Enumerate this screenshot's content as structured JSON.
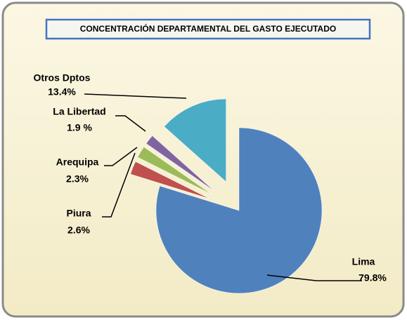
{
  "chart_data": {
    "type": "pie",
    "title": "CONCENTRACIÓN DEPARTAMENTAL DEL GASTO EJECUTADO",
    "categories": [
      "Lima",
      "Piura",
      "Arequipa",
      "La Libertad",
      "Otros Dptos"
    ],
    "values": [
      79.8,
      2.6,
      2.3,
      1.9,
      13.4
    ],
    "value_labels": [
      "79.8%",
      "2.6%",
      "2.3%",
      "1.9 %",
      "13.4%"
    ],
    "colors": [
      "#4f81bd",
      "#c0504d",
      "#9bbb59",
      "#8064a2",
      "#4bacc6"
    ]
  }
}
